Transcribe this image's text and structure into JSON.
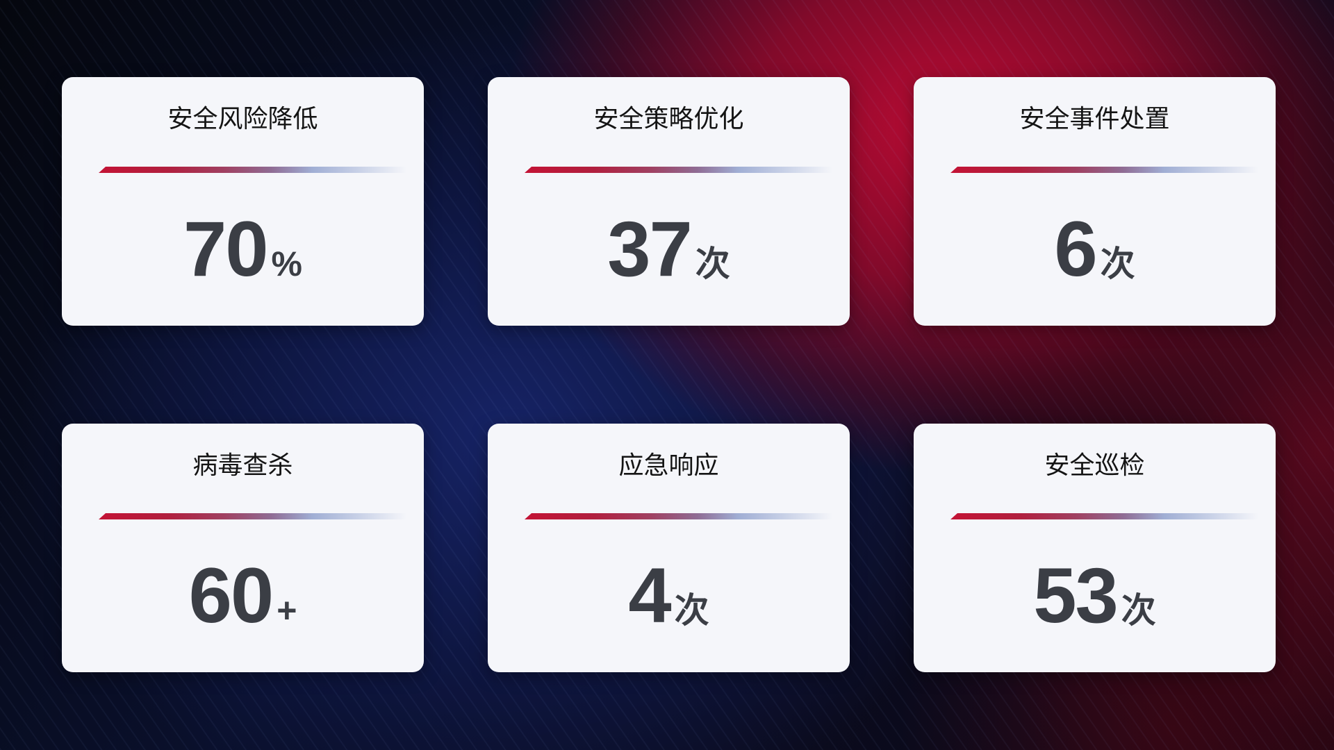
{
  "colors": {
    "card_background": "#f5f6fa",
    "title_text": "#141414",
    "value_text": "#3b3e45",
    "divider_red": "#c31335",
    "divider_blue": "#c6cfe6",
    "background_red": "#a50d33",
    "background_navy": "#17246b"
  },
  "cards": [
    {
      "title": "安全风险降低",
      "value": "70",
      "unit": "%"
    },
    {
      "title": "安全策略优化",
      "value": "37",
      "unit": "次"
    },
    {
      "title": "安全事件处置",
      "value": "6",
      "unit": "次"
    },
    {
      "title": "病毒查杀",
      "value": "60",
      "unit": "+"
    },
    {
      "title": "应急响应",
      "value": "4",
      "unit": "次"
    },
    {
      "title": "安全巡检",
      "value": "53",
      "unit": "次"
    }
  ]
}
